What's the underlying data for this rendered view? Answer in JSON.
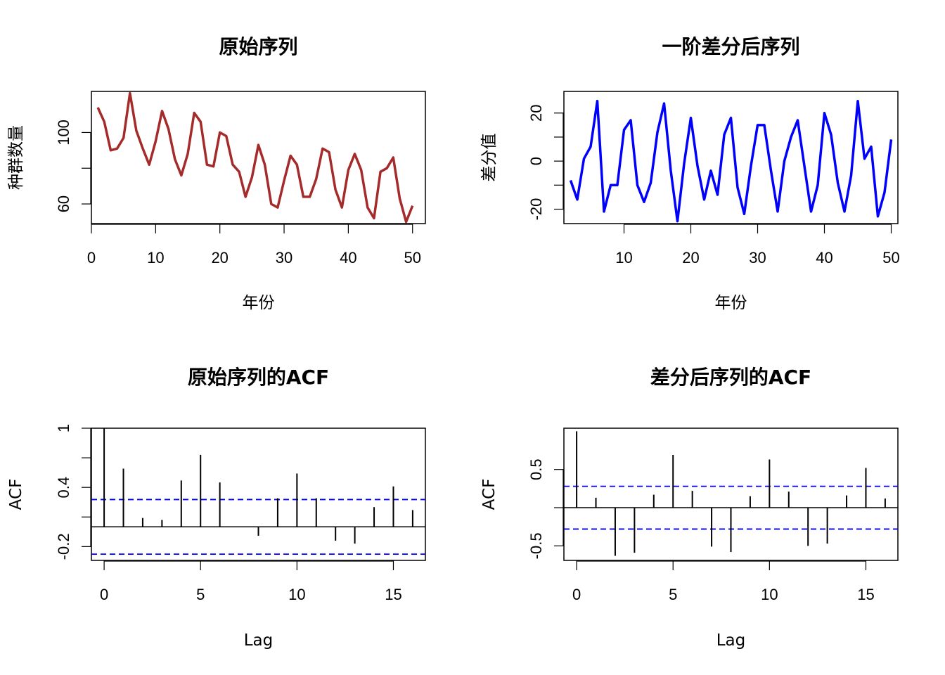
{
  "chart_data": [
    {
      "type": "line",
      "title": "原始序列",
      "xlabel": "年份",
      "ylabel": "种群数量",
      "color": "#A52A2A",
      "xlim": [
        0,
        52
      ],
      "ylim": [
        49,
        123
      ],
      "xticks": [
        0,
        10,
        20,
        30,
        40,
        50
      ],
      "yticks": [
        60,
        100
      ],
      "x": [
        1,
        2,
        3,
        4,
        5,
        6,
        7,
        8,
        9,
        10,
        11,
        12,
        13,
        14,
        15,
        16,
        17,
        18,
        19,
        20,
        21,
        22,
        23,
        24,
        25,
        26,
        27,
        28,
        29,
        30,
        31,
        32,
        33,
        34,
        35,
        36,
        37,
        38,
        39,
        40,
        41,
        42,
        43,
        44,
        45,
        46,
        47,
        48,
        49,
        50
      ],
      "y": [
        114,
        106,
        90,
        91,
        97,
        122,
        101,
        91,
        82,
        95,
        112,
        102,
        85,
        76,
        88,
        111,
        106,
        82,
        81,
        100,
        98,
        82,
        78,
        64,
        75,
        93,
        82,
        60,
        58,
        73,
        87,
        82,
        64,
        64,
        74,
        91,
        89,
        68,
        58,
        79,
        88,
        79,
        58,
        52,
        78,
        80,
        86,
        63,
        50,
        59
      ]
    },
    {
      "type": "line",
      "title": "一阶差分后序列",
      "xlabel": "年份",
      "ylabel": "差分值",
      "color": "#0000FF",
      "xlim": [
        1,
        51
      ],
      "ylim": [
        -26,
        29
      ],
      "xticks": [
        10,
        20,
        30,
        40,
        50
      ],
      "yticks": [
        -20,
        0,
        20
      ],
      "x": [
        2,
        3,
        4,
        5,
        6,
        7,
        8,
        9,
        10,
        11,
        12,
        13,
        14,
        15,
        16,
        17,
        18,
        19,
        20,
        21,
        22,
        23,
        24,
        25,
        26,
        27,
        28,
        29,
        30,
        31,
        32,
        33,
        34,
        35,
        36,
        37,
        38,
        39,
        40,
        41,
        42,
        43,
        44,
        45,
        46,
        47,
        48,
        49,
        50
      ],
      "y": [
        -8,
        -16,
        1,
        6,
        25,
        -21,
        -10,
        -10,
        13,
        17,
        -10,
        -17,
        -9,
        12,
        24,
        -4,
        -25,
        -1,
        18,
        -2,
        -16,
        -4,
        -14,
        11,
        18,
        -11,
        -22,
        -2,
        15,
        15,
        -4,
        -21,
        0,
        10,
        17,
        -2,
        -21,
        -10,
        20,
        11,
        -9,
        -21,
        -6,
        25,
        1,
        6,
        -23,
        -13,
        9
      ]
    },
    {
      "type": "bar",
      "title": "原始序列的ACF",
      "xlabel": "Lag",
      "ylabel": "ACF",
      "color": "#000000",
      "xlim": [
        -0.66,
        16.66
      ],
      "ylim": [
        -0.34,
        1.0
      ],
      "xticks": [
        0,
        5,
        10,
        15
      ],
      "yticks": [
        -0.2,
        0.4,
        1.0
      ],
      "ci": 0.277,
      "ci_color": "#0000FF",
      "categories": [
        0,
        1,
        2,
        3,
        4,
        5,
        6,
        7,
        8,
        9,
        10,
        11,
        12,
        13,
        14,
        15,
        16
      ],
      "values": [
        1.0,
        0.59,
        0.09,
        0.07,
        0.47,
        0.73,
        0.45,
        0.0,
        -0.09,
        0.29,
        0.54,
        0.29,
        -0.14,
        -0.17,
        0.2,
        0.41,
        0.17
      ]
    },
    {
      "type": "bar",
      "title": "差分后序列的ACF",
      "xlabel": "Lag",
      "ylabel": "ACF",
      "color": "#000000",
      "xlim": [
        -0.66,
        16.66
      ],
      "ylim": [
        -0.69,
        1.04
      ],
      "xticks": [
        0,
        5,
        10,
        15
      ],
      "yticks": [
        -0.5,
        0.5
      ],
      "ci": 0.28,
      "ci_color": "#0000FF",
      "categories": [
        0,
        1,
        2,
        3,
        4,
        5,
        6,
        7,
        8,
        9,
        10,
        11,
        12,
        13,
        14,
        15,
        16
      ],
      "values": [
        1.0,
        0.13,
        -0.63,
        -0.59,
        0.17,
        0.69,
        0.22,
        -0.51,
        -0.58,
        0.15,
        0.63,
        0.21,
        -0.5,
        -0.47,
        0.16,
        0.52,
        0.12
      ]
    }
  ]
}
